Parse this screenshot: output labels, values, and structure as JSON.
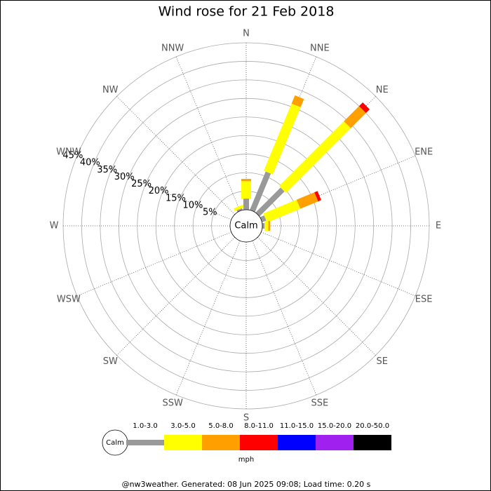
{
  "chart_data": {
    "type": "wind_rose",
    "title": "Wind rose for 21 Feb 2018",
    "directions": [
      "N",
      "NNE",
      "NE",
      "ENE",
      "E",
      "ESE",
      "SE",
      "SSE",
      "S",
      "SSW",
      "SW",
      "WSW",
      "W",
      "WNW",
      "NW",
      "NNW"
    ],
    "calm_label": "Calm",
    "rlim": [
      0,
      45
    ],
    "rticks": [
      {
        "value": 5,
        "label": "5%"
      },
      {
        "value": 10,
        "label": "10%"
      },
      {
        "value": 15,
        "label": "15%"
      },
      {
        "value": 20,
        "label": "20%"
      },
      {
        "value": 25,
        "label": "25%"
      },
      {
        "value": 30,
        "label": "30%"
      },
      {
        "value": 35,
        "label": "35%"
      },
      {
        "value": 40,
        "label": "40%"
      },
      {
        "value": 45,
        "label": "45%"
      }
    ],
    "series": [
      {
        "name": "1.0-3.0",
        "color": "#999999",
        "values": [
          3,
          11.2,
          9.5,
          1.2,
          0.6,
          0,
          0,
          0,
          0,
          0,
          0,
          0,
          0,
          0,
          0,
          0.5
        ]
      },
      {
        "name": "3.0-5.0",
        "color": "#ffff00",
        "values": [
          4.7,
          19.6,
          24.7,
          9.7,
          1,
          0,
          0,
          0,
          0,
          0,
          0,
          0,
          0,
          0,
          0,
          0.8
        ]
      },
      {
        "name": "5.0-8.0",
        "color": "#ffa000",
        "values": [
          0.6,
          2.4,
          5.8,
          5.2,
          0.5,
          0,
          0,
          0,
          0,
          0,
          0,
          0,
          0,
          0,
          0,
          0
        ]
      },
      {
        "name": "8.0-11.0",
        "color": "#ff0000",
        "values": [
          0,
          0,
          1.4,
          0.9,
          0,
          0,
          0,
          0,
          0,
          0,
          0,
          0,
          0,
          0,
          0,
          0
        ]
      },
      {
        "name": "11.0-15.0",
        "color": "#0000ff",
        "values": [
          0,
          0,
          0,
          0,
          0,
          0,
          0,
          0,
          0,
          0,
          0,
          0,
          0,
          0,
          0,
          0
        ]
      },
      {
        "name": "15.0-20.0",
        "color": "#a020f0",
        "values": [
          0,
          0,
          0,
          0,
          0,
          0,
          0,
          0,
          0,
          0,
          0,
          0,
          0,
          0,
          0,
          0
        ]
      },
      {
        "name": "20.0-50.0",
        "color": "#000000",
        "values": [
          0,
          0,
          0,
          0,
          0,
          0,
          0,
          0,
          0,
          0,
          0,
          0,
          0,
          0,
          0,
          0
        ]
      }
    ],
    "legend_title": "mph",
    "footer": "@nw3weather. Generated: 08 Jun 2025 09:08; Load time: 0.20 s"
  }
}
